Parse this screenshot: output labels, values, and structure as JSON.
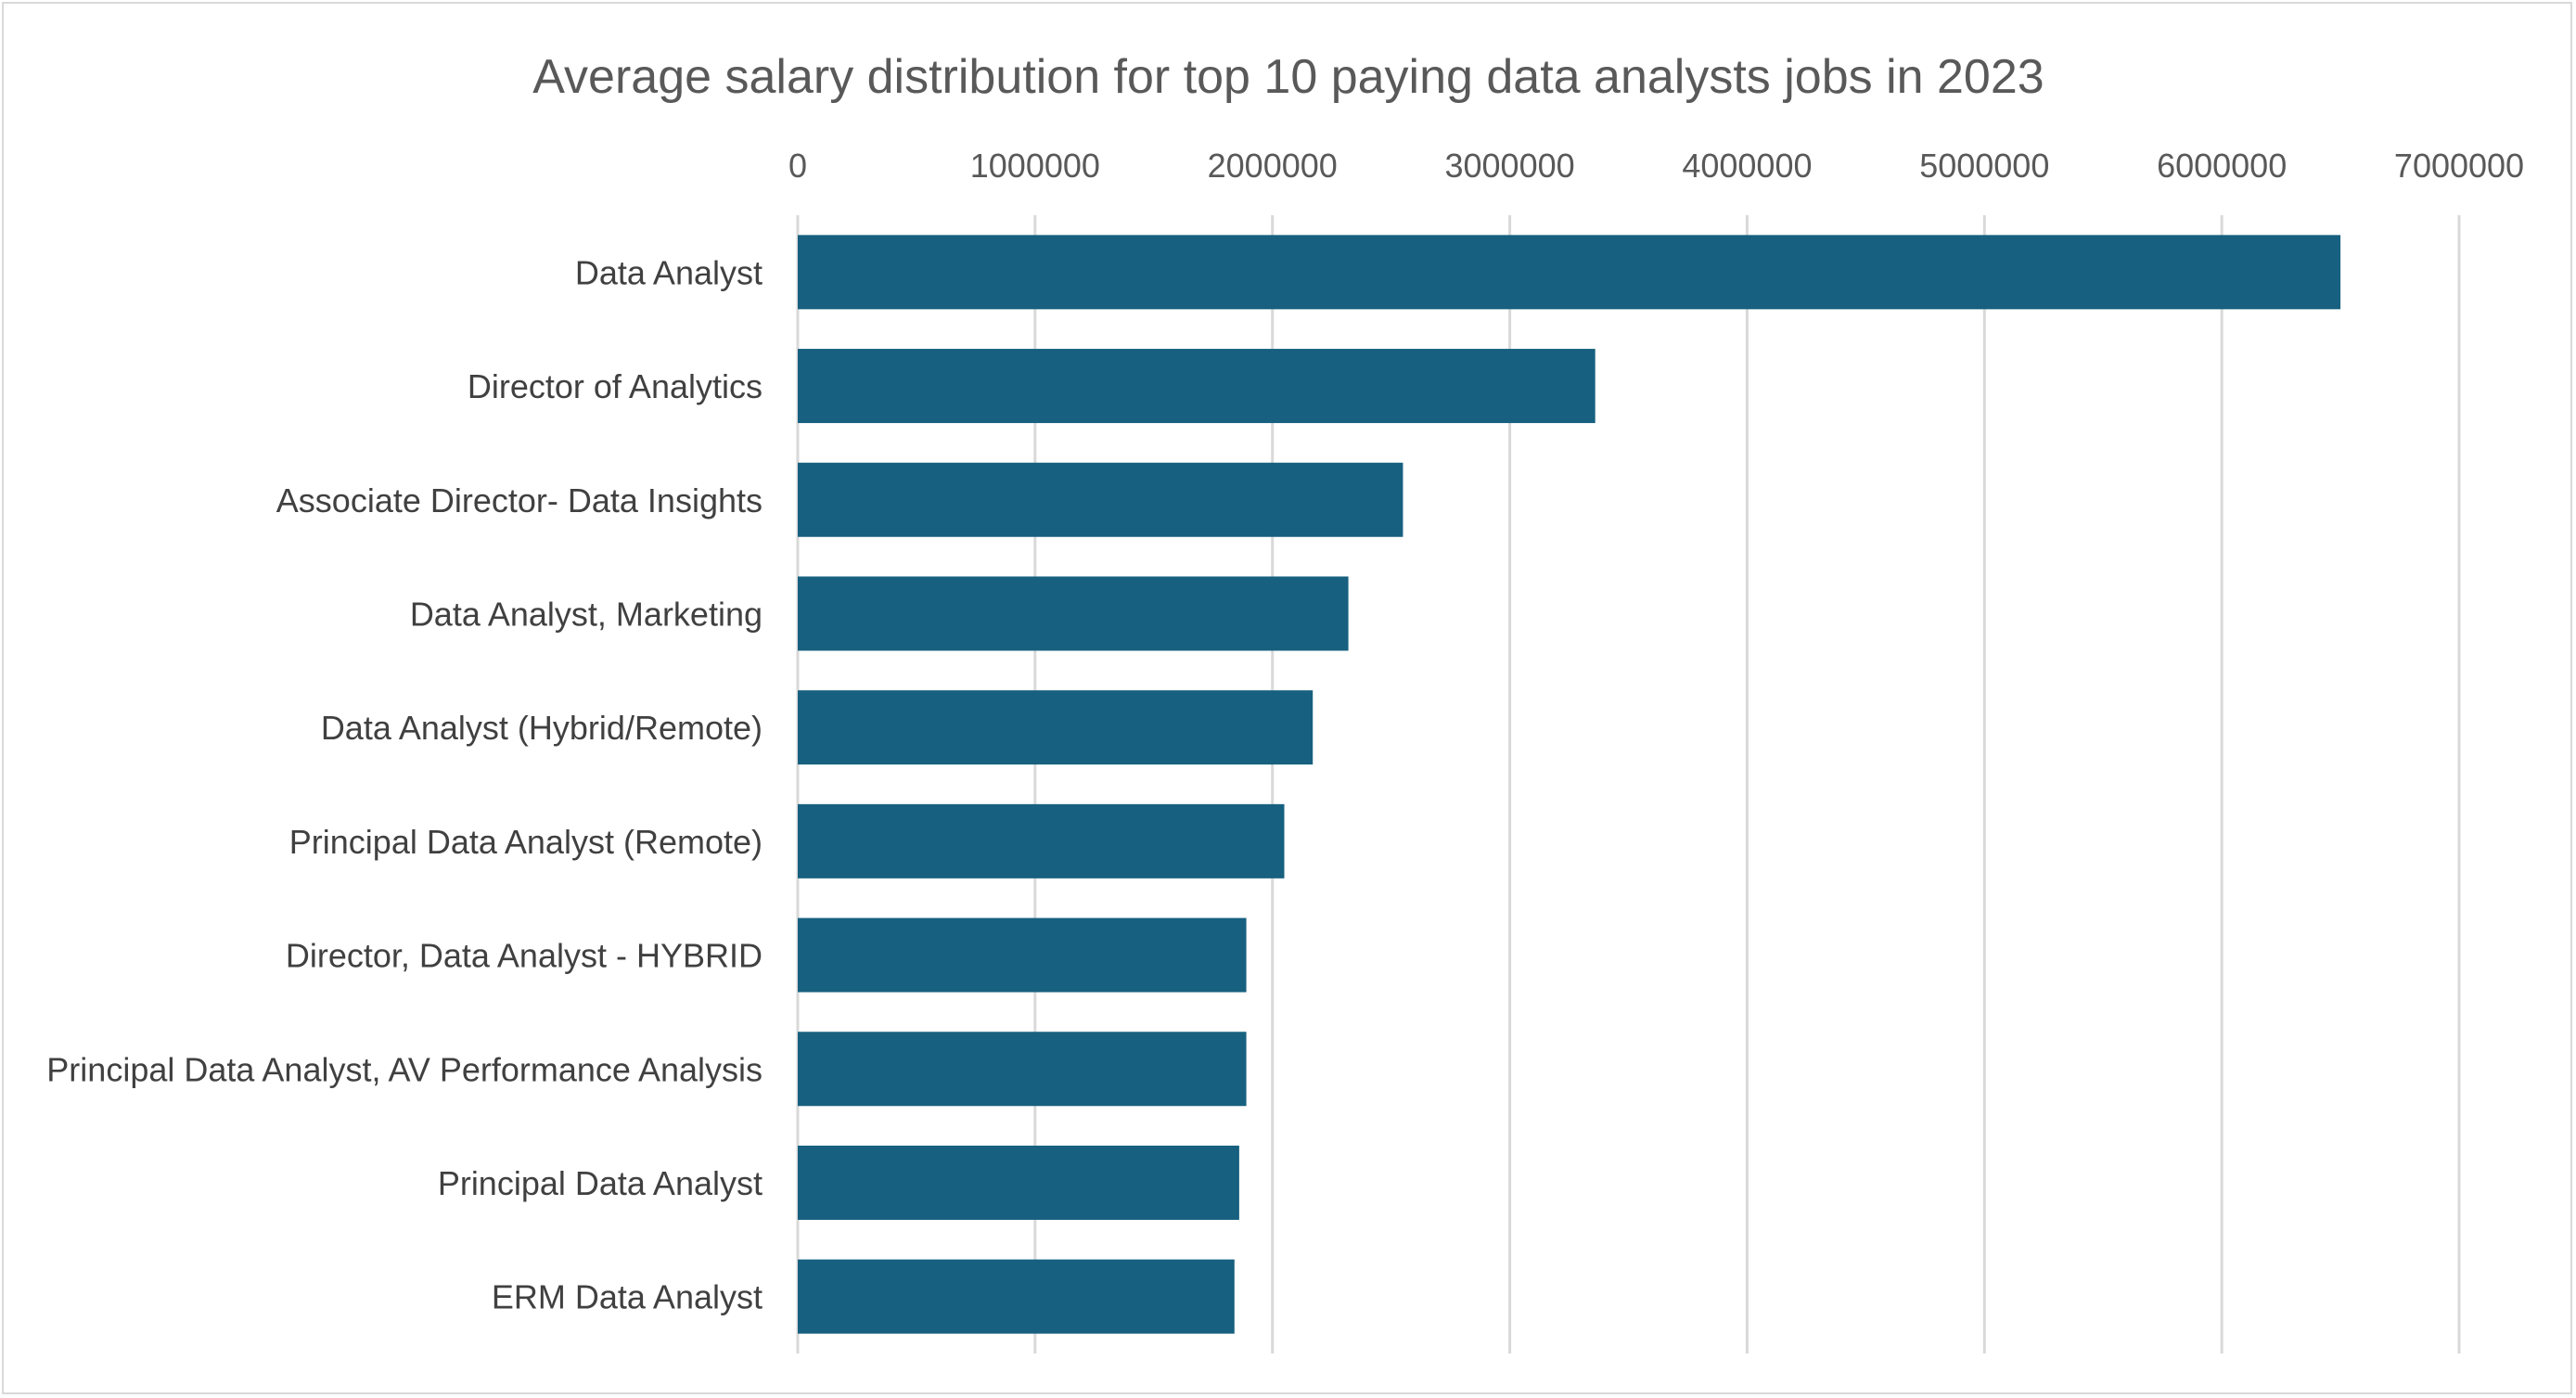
{
  "chart_data": {
    "type": "bar",
    "orientation": "horizontal",
    "title": "Average salary distribution for top 10 paying data analysts jobs in 2023",
    "xlabel": "",
    "ylabel": "",
    "axis_position": "top",
    "xlim": [
      0,
      7000000
    ],
    "x_ticks": [
      "0",
      "1000000",
      "2000000",
      "3000000",
      "4000000",
      "5000000",
      "6000000",
      "7000000"
    ],
    "grid": true,
    "legend": "none",
    "bar_color": "#17607F",
    "categories": [
      "Data Analyst",
      "Director of Analytics",
      "Associate Director- Data Insights",
      "Data Analyst, Marketing",
      "Data Analyst (Hybrid/Remote)",
      "Principal Data Analyst (Remote)",
      "Director, Data Analyst - HYBRID",
      "Principal Data Analyst, AV Performance Analysis",
      "Principal Data Analyst",
      "ERM Data Analyst"
    ],
    "values": [
      6500000,
      3360000,
      2550000,
      2320000,
      2170000,
      2050000,
      1890000,
      1890000,
      1860000,
      1840000
    ]
  }
}
